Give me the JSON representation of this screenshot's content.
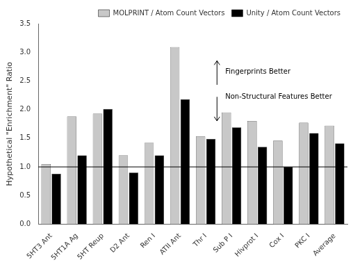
{
  "chart_data": {
    "type": "bar",
    "categories": [
      "5HT3 Ant",
      "5HT1A Ag",
      "5HT Reup",
      "D2 Ant",
      "Ren I",
      "ATII Ant",
      "Thr I",
      "Sub P I",
      "Hivprot I",
      "Cox I",
      "PKC I",
      "Average"
    ],
    "series": [
      {
        "name": "MOLPRINT / Atom Count Vectors",
        "color": "#c8c8c8",
        "values": [
          1.05,
          1.88,
          1.93,
          1.2,
          1.42,
          3.09,
          1.53,
          1.95,
          1.8,
          1.46,
          1.77,
          1.72
        ]
      },
      {
        "name": "Unity / Atom Count Vectors",
        "color": "#000000",
        "values": [
          0.88,
          1.2,
          2.01,
          0.9,
          1.2,
          2.18,
          1.49,
          1.69,
          1.35,
          1.0,
          1.59,
          1.41
        ]
      }
    ],
    "ylabel": "Hypothetical \"Enrichment\" Ratio",
    "ylim": [
      0.0,
      3.5
    ],
    "yticks": [
      {
        "value": 0,
        "label": "0.0"
      },
      {
        "value": 0.5,
        "label": "0.5"
      },
      {
        "value": 1,
        "label": "1.0"
      },
      {
        "value": 1.5,
        "label": "1.5"
      },
      {
        "value": 2,
        "label": "2.0"
      },
      {
        "value": 2.5,
        "label": "2.5"
      },
      {
        "value": 3,
        "label": "3.0"
      },
      {
        "value": 3.5,
        "label": "3.5"
      }
    ],
    "reference_line": 1.0,
    "annotations": [
      "Fingerprints Better",
      "Non-Structural Features Better"
    ],
    "legend": "upper right",
    "grid": false
  }
}
